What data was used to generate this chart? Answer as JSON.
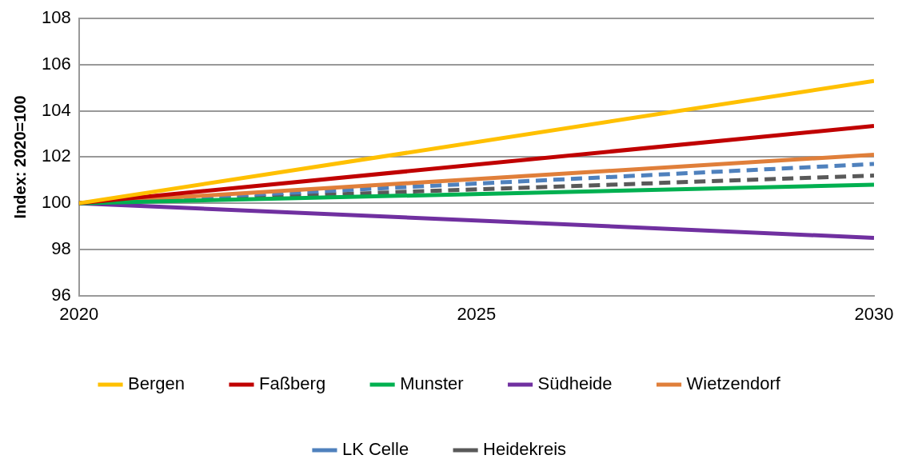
{
  "chart_data": {
    "type": "line",
    "ylabel": "Index: 2020=100",
    "x": [
      2020,
      2030
    ],
    "xlim": [
      2020,
      2030
    ],
    "xticks": [
      2020,
      2025,
      2030
    ],
    "ylim": [
      96,
      108
    ],
    "yticks": [
      96,
      98,
      100,
      102,
      104,
      106,
      108
    ],
    "grid": "y",
    "legend": "bottom",
    "marker": "none",
    "series": [
      {
        "name": "Bergen",
        "color": "#ffc000",
        "values": [
          100,
          105.3
        ]
      },
      {
        "name": "Faßberg",
        "color": "#c00000",
        "values": [
          100,
          103.35
        ]
      },
      {
        "name": "Munster",
        "color": "#00b050",
        "values": [
          100,
          100.8
        ]
      },
      {
        "name": "Südheide",
        "color": "#7030a0",
        "values": [
          100,
          98.5
        ]
      },
      {
        "name": "Wietzendorf",
        "color": "#e07f3a",
        "values": [
          100,
          102.1
        ]
      },
      {
        "name": "LK Celle",
        "color": "#4f81bd",
        "values": [
          100,
          101.7
        ],
        "line_style": "dashed"
      },
      {
        "name": "Heidekreis",
        "color": "#595959",
        "values": [
          100,
          101.2
        ],
        "line_style": "dashed"
      }
    ]
  }
}
